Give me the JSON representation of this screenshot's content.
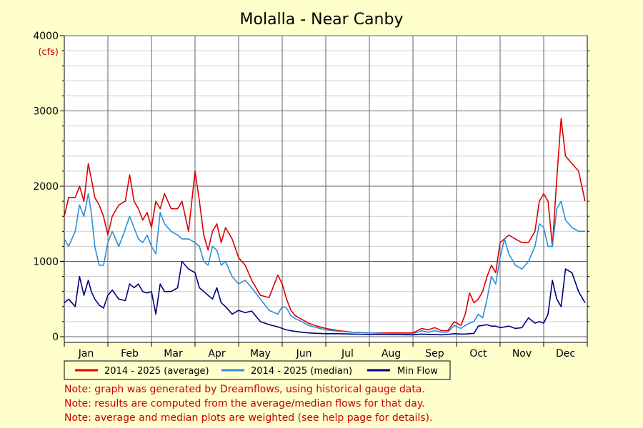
{
  "chart_data": {
    "type": "line",
    "title": "Molalla - Near Canby",
    "y_unit": "(cfs)",
    "ylim": [
      0,
      4000
    ],
    "y_ticks": [
      0,
      1000,
      2000,
      3000,
      4000
    ],
    "xlim": [
      0,
      12
    ],
    "months": [
      "Jan",
      "Feb",
      "Mar",
      "Apr",
      "May",
      "Jun",
      "Jul",
      "Aug",
      "Sep",
      "Oct",
      "Nov",
      "Dec"
    ],
    "grid": true,
    "legend_placement": "bottom",
    "series": [
      {
        "name": "2014 - 2025 (average)",
        "color": "#dd0000",
        "x": [
          0,
          0.1,
          0.25,
          0.35,
          0.45,
          0.55,
          0.62,
          0.7,
          0.8,
          0.9,
          1.0,
          1.1,
          1.25,
          1.4,
          1.5,
          1.6,
          1.7,
          1.8,
          1.9,
          2.0,
          2.1,
          2.2,
          2.3,
          2.45,
          2.6,
          2.7,
          2.85,
          3.0,
          3.1,
          3.2,
          3.3,
          3.4,
          3.5,
          3.6,
          3.7,
          3.85,
          4.0,
          4.15,
          4.3,
          4.5,
          4.7,
          4.9,
          5.0,
          5.1,
          5.2,
          5.3,
          5.45,
          5.6,
          5.8,
          6.0,
          6.3,
          6.6,
          7.0,
          7.5,
          8.0,
          8.2,
          8.35,
          8.5,
          8.65,
          8.8,
          8.95,
          9.1,
          9.2,
          9.3,
          9.4,
          9.5,
          9.6,
          9.7,
          9.8,
          9.9,
          10.0,
          10.1,
          10.2,
          10.35,
          10.5,
          10.65,
          10.8,
          10.9,
          11.0,
          11.1,
          11.2,
          11.3,
          11.4,
          11.5,
          11.65,
          11.8,
          11.95
        ],
        "values": [
          1600,
          1850,
          1850,
          2000,
          1800,
          2300,
          2100,
          1850,
          1750,
          1600,
          1350,
          1600,
          1750,
          1800,
          2150,
          1800,
          1700,
          1550,
          1650,
          1450,
          1800,
          1700,
          1900,
          1700,
          1700,
          1800,
          1400,
          2200,
          1800,
          1350,
          1150,
          1400,
          1500,
          1250,
          1450,
          1300,
          1050,
          950,
          750,
          550,
          520,
          820,
          700,
          500,
          350,
          280,
          230,
          180,
          140,
          110,
          80,
          60,
          50,
          50,
          50,
          110,
          90,
          120,
          80,
          80,
          200,
          150,
          300,
          580,
          450,
          500,
          600,
          800,
          950,
          850,
          1250,
          1300,
          1350,
          1300,
          1250,
          1250,
          1400,
          1800,
          1900,
          1800,
          1200,
          2100,
          2900,
          2400,
          2300,
          2200,
          1800
        ]
      },
      {
        "name": "2014 - 2025 (median)",
        "color": "#2b8fd9",
        "x": [
          0,
          0.1,
          0.25,
          0.35,
          0.45,
          0.55,
          0.62,
          0.7,
          0.8,
          0.9,
          1.0,
          1.1,
          1.25,
          1.35,
          1.5,
          1.6,
          1.7,
          1.8,
          1.9,
          2.0,
          2.1,
          2.2,
          2.3,
          2.45,
          2.6,
          2.7,
          2.85,
          3.0,
          3.1,
          3.2,
          3.3,
          3.4,
          3.5,
          3.6,
          3.7,
          3.85,
          4.0,
          4.15,
          4.3,
          4.5,
          4.7,
          4.9,
          5.0,
          5.1,
          5.2,
          5.3,
          5.45,
          5.6,
          5.8,
          6.0,
          6.3,
          6.6,
          7.0,
          7.5,
          8.0,
          8.2,
          8.35,
          8.5,
          8.65,
          8.8,
          8.95,
          9.1,
          9.2,
          9.3,
          9.4,
          9.5,
          9.6,
          9.7,
          9.8,
          9.9,
          10.0,
          10.1,
          10.2,
          10.35,
          10.5,
          10.65,
          10.8,
          10.9,
          11.0,
          11.1,
          11.2,
          11.3,
          11.4,
          11.5,
          11.65,
          11.8,
          11.95
        ],
        "values": [
          1300,
          1200,
          1400,
          1750,
          1600,
          1900,
          1650,
          1200,
          950,
          950,
          1250,
          1400,
          1200,
          1350,
          1600,
          1450,
          1300,
          1250,
          1350,
          1200,
          1100,
          1650,
          1500,
          1400,
          1350,
          1300,
          1300,
          1250,
          1200,
          1000,
          950,
          1200,
          1150,
          950,
          1000,
          800,
          700,
          750,
          650,
          500,
          350,
          300,
          400,
          380,
          280,
          240,
          200,
          150,
          120,
          90,
          70,
          60,
          50,
          40,
          40,
          80,
          60,
          80,
          60,
          60,
          150,
          110,
          150,
          180,
          200,
          300,
          250,
          500,
          800,
          700,
          1050,
          1300,
          1100,
          950,
          900,
          1000,
          1200,
          1500,
          1450,
          1200,
          1200,
          1700,
          1800,
          1550,
          1450,
          1400,
          1400
        ]
      },
      {
        "name": "Min Flow",
        "color": "#000080",
        "x": [
          0,
          0.1,
          0.25,
          0.35,
          0.45,
          0.55,
          0.62,
          0.7,
          0.8,
          0.9,
          1.0,
          1.1,
          1.25,
          1.4,
          1.5,
          1.6,
          1.7,
          1.8,
          1.9,
          2.0,
          2.1,
          2.2,
          2.3,
          2.45,
          2.6,
          2.7,
          2.85,
          3.0,
          3.1,
          3.2,
          3.3,
          3.4,
          3.5,
          3.6,
          3.7,
          3.85,
          4.0,
          4.15,
          4.3,
          4.5,
          4.7,
          4.9,
          5.0,
          5.1,
          5.2,
          5.3,
          5.45,
          5.6,
          5.8,
          6.0,
          6.3,
          6.6,
          7.0,
          7.5,
          8.0,
          8.2,
          8.35,
          8.5,
          8.65,
          8.8,
          8.95,
          9.1,
          9.2,
          9.3,
          9.4,
          9.5,
          9.6,
          9.7,
          9.8,
          9.9,
          10.0,
          10.1,
          10.2,
          10.35,
          10.5,
          10.65,
          10.8,
          10.9,
          11.0,
          11.1,
          11.2,
          11.3,
          11.4,
          11.5,
          11.65,
          11.8,
          11.95
        ],
        "values": [
          450,
          500,
          400,
          800,
          550,
          750,
          600,
          500,
          420,
          380,
          550,
          620,
          500,
          480,
          700,
          650,
          700,
          600,
          580,
          600,
          300,
          700,
          600,
          600,
          650,
          1000,
          900,
          850,
          650,
          600,
          550,
          500,
          650,
          450,
          400,
          300,
          350,
          320,
          340,
          200,
          160,
          130,
          110,
          90,
          80,
          70,
          60,
          50,
          45,
          40,
          40,
          35,
          30,
          28,
          25,
          35,
          30,
          30,
          25,
          30,
          40,
          35,
          35,
          40,
          45,
          140,
          150,
          160,
          140,
          140,
          120,
          130,
          140,
          110,
          120,
          250,
          180,
          200,
          180,
          300,
          750,
          500,
          400,
          900,
          850,
          600,
          450
        ]
      }
    ]
  },
  "legend": {
    "items": [
      {
        "label": "2014 - 2025 (average)",
        "color": "#dd0000"
      },
      {
        "label": "2014 - 2025 (median)",
        "color": "#2b8fd9"
      },
      {
        "label": "Min Flow",
        "color": "#000080"
      }
    ]
  },
  "notes": [
    "Note: graph was generated by Dreamflows, using historical gauge data.",
    "Note: results are computed from the average/median flows for that day.",
    "Note: average and median plots are weighted (see help page for details)."
  ]
}
